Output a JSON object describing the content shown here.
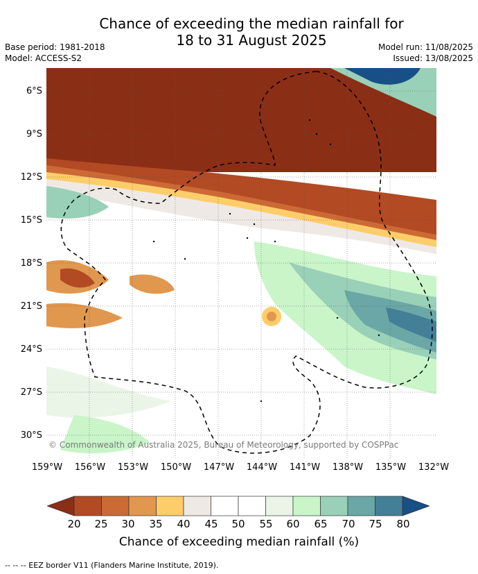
{
  "title_line1": "Chance of exceeding the median rainfall for",
  "title_line2": "18 to 31 August 2025",
  "base_period": "Base period: 1981-2018",
  "model": "Model: ACCESS-S2",
  "model_run": "Model run: 11/08/2025",
  "issued": "Issued: 13/08/2025",
  "copyright": "© Commonwealth of Australia 2025, Bureau of Meteorology, supported by COSPPac",
  "lat_labels": [
    "6°S",
    "9°S",
    "12°S",
    "15°S",
    "18°S",
    "21°S",
    "24°S",
    "27°S",
    "30°S"
  ],
  "lon_labels": [
    "159°W",
    "156°W",
    "153°W",
    "150°W",
    "147°W",
    "144°W",
    "141°W",
    "138°W",
    "135°W",
    "132°W"
  ],
  "colorbar": {
    "ticks": [
      "20",
      "25",
      "30",
      "35",
      "40",
      "45",
      "50",
      "55",
      "60",
      "65",
      "70",
      "75",
      "80"
    ],
    "colors": [
      "#8b2e16",
      "#b24a24",
      "#cc6a35",
      "#e0974e",
      "#fdcd6a",
      "#efe9e6",
      "#ffffff",
      "#ffffff",
      "#eaf5e8",
      "#c9f5c9",
      "#99d0b8",
      "#6aa7a6",
      "#447f98",
      "#174f86"
    ],
    "title": "Chance of exceeding median rainfall (%)"
  },
  "footer": "--  --  -- EEZ border V11 (Flanders Marine Institute, 2019)."
}
